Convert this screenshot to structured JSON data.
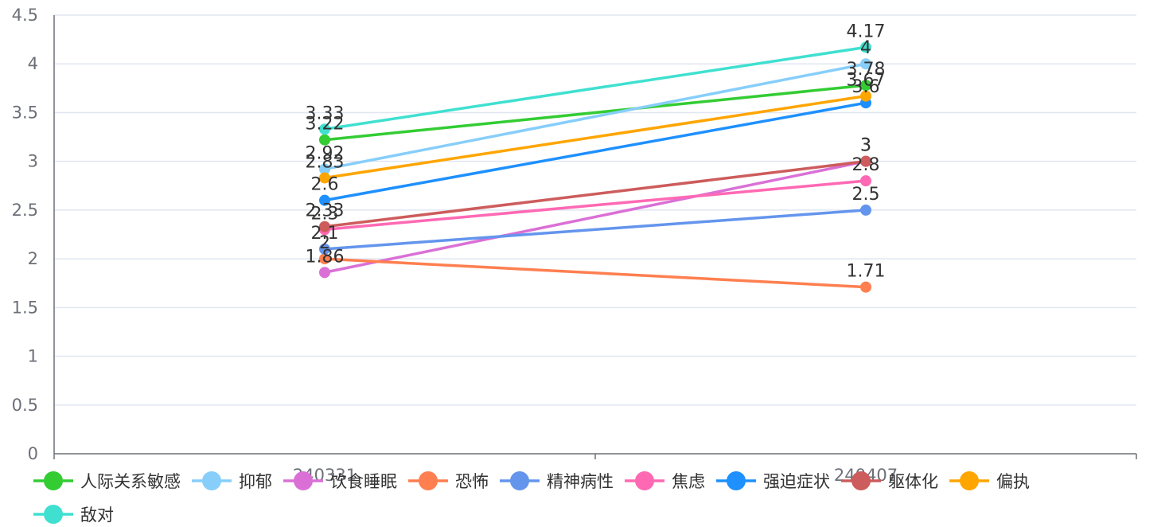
{
  "chart_data": {
    "type": "line",
    "categories": [
      "240331",
      "240407"
    ],
    "ylim": [
      0,
      4.5
    ],
    "yticks": [
      "0",
      "0.5",
      "1",
      "1.5",
      "2",
      "2.5",
      "3",
      "3.5",
      "4",
      "4.5"
    ],
    "grid": true,
    "legend_position": "bottom",
    "series": [
      {
        "name": "人际关系敏感",
        "color": "#33cc33",
        "values": [
          3.22,
          3.78
        ]
      },
      {
        "name": "抑郁",
        "color": "#87cefa",
        "values": [
          2.92,
          4
        ]
      },
      {
        "name": "饮食睡眠",
        "color": "#da70d6",
        "values": [
          1.86,
          3
        ]
      },
      {
        "name": "恐怖",
        "color": "#ff7f50",
        "values": [
          2,
          1.71
        ]
      },
      {
        "name": "精神病性",
        "color": "#6495ed",
        "values": [
          2.1,
          2.5
        ]
      },
      {
        "name": "焦虑",
        "color": "#ff69b4",
        "values": [
          2.3,
          2.8
        ]
      },
      {
        "name": "强迫症状",
        "color": "#1e90ff",
        "values": [
          2.6,
          3.6
        ]
      },
      {
        "name": "躯体化",
        "color": "#cd5c5c",
        "values": [
          2.33,
          3
        ]
      },
      {
        "name": "偏执",
        "color": "#ffa500",
        "values": [
          2.83,
          3.67
        ]
      },
      {
        "name": "敌对",
        "color": "#40e0d0",
        "values": [
          3.33,
          4.17
        ]
      }
    ]
  }
}
